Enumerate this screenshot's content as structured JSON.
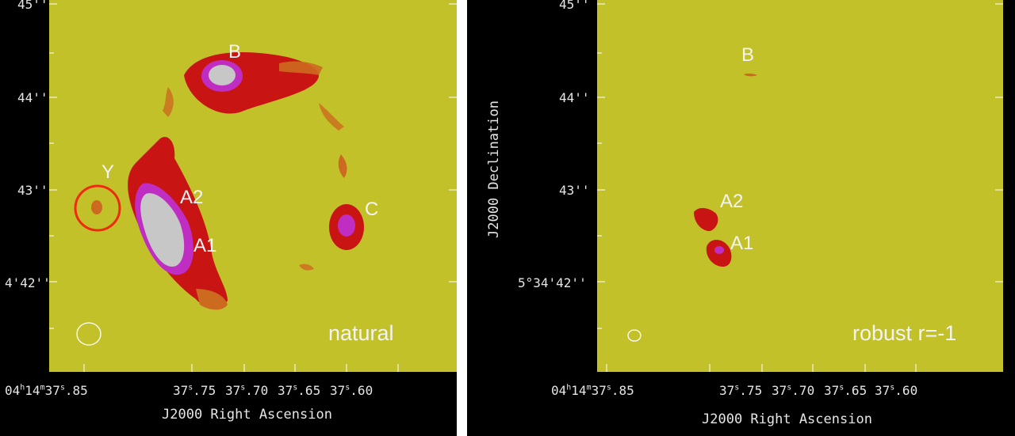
{
  "panels": [
    {
      "label": "natural",
      "y_ticks": [
        "45''",
        "44''",
        "43''",
        "4'42''"
      ],
      "x_ticks": [
        {
          "pre": "04",
          "s1": "h",
          "mid": "14",
          "s2": "m",
          "post": "37",
          "s3": "s",
          "tail": ".85"
        },
        {
          "pre": "37",
          "s1": "s",
          "mid": ".75",
          "s2": "",
          "post": "",
          "s3": "",
          "tail": ""
        },
        {
          "pre": "37",
          "s1": "s",
          "mid": ".70",
          "s2": "",
          "post": "",
          "s3": "",
          "tail": ""
        },
        {
          "pre": "37",
          "s1": "s",
          "mid": ".65",
          "s2": "",
          "post": "",
          "s3": "",
          "tail": ""
        },
        {
          "pre": "37",
          "s1": "s",
          "mid": ".60",
          "s2": "",
          "post": "",
          "s3": "",
          "tail": ""
        }
      ],
      "x_axis_title": "J2000 Right Ascension",
      "source_labels": {
        "b": "B",
        "y": "Y",
        "a2": "A2",
        "a1": "A1",
        "c": "C"
      }
    },
    {
      "label": "robust r=-1",
      "y_ticks": [
        "45''",
        "44''",
        "43''",
        "5°34'42''"
      ],
      "x_ticks": [
        {
          "pre": "04",
          "s1": "h",
          "mid": "14",
          "s2": "m",
          "post": "37",
          "s3": "s",
          "tail": ".85"
        },
        {
          "pre": "37",
          "s1": "s",
          "mid": ".75",
          "s2": "",
          "post": "",
          "s3": "",
          "tail": ""
        },
        {
          "pre": "37",
          "s1": "s",
          "mid": ".70",
          "s2": "",
          "post": "",
          "s3": "",
          "tail": ""
        },
        {
          "pre": "37",
          "s1": "s",
          "mid": ".65",
          "s2": "",
          "post": "",
          "s3": "",
          "tail": ""
        },
        {
          "pre": "37",
          "s1": "s",
          "mid": ".60",
          "s2": "",
          "post": "",
          "s3": "",
          "tail": ""
        }
      ],
      "x_axis_title": "J2000 Right Ascension",
      "y_axis_title": "J2000 Declination",
      "source_labels": {
        "b": "B",
        "a2": "A2",
        "a1": "A1"
      }
    }
  ],
  "colors": {
    "background": "#c3c12a",
    "low": "#cc6a1f",
    "mid": "#c91414",
    "high": "#c02dc2",
    "peak": "#c7c7c7",
    "marker": "#ee2a10"
  }
}
